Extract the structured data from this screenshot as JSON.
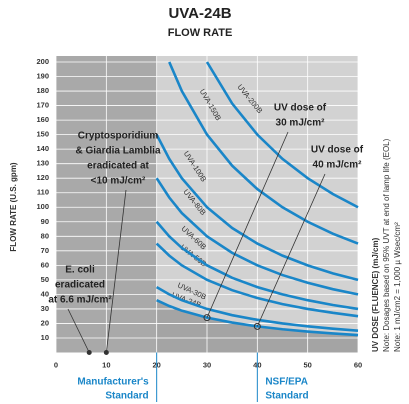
{
  "chart_data": {
    "type": "line",
    "title": "UVA-24B",
    "subtitle": "FLOW RATE",
    "y_label": "FLOW RATE (U.S. gpm)",
    "x_label": "UV DOSE (FLUENCE) (mJ/cm)",
    "notes": [
      "Note: Dosages based on 95% UVT at end of lamp life (EOL)",
      "Note: 1 mJ/cm2 = 1,000 µ Wsec/cm²"
    ],
    "xlim": [
      0,
      60
    ],
    "ylim": [
      0,
      200
    ],
    "xticks": [
      0,
      10,
      20,
      30,
      40,
      50,
      60
    ],
    "yticks": [
      10,
      20,
      30,
      40,
      50,
      60,
      70,
      80,
      90,
      100,
      110,
      120,
      130,
      140,
      150,
      160,
      170,
      180,
      190,
      200
    ],
    "grid": true,
    "x": [
      20,
      22.5,
      25,
      30,
      35,
      40,
      45,
      50,
      55,
      60
    ],
    "series": [
      {
        "name": "UVA-24B",
        "color": "#1a86c8",
        "values": [
          36,
          32,
          28.8,
          24,
          20.6,
          18,
          16,
          14.4,
          13.1,
          12
        ]
      },
      {
        "name": "UVA-30B",
        "color": "#1a86c8",
        "values": [
          45,
          40,
          36,
          30,
          25.7,
          22.5,
          20,
          18,
          16.4,
          15
        ]
      },
      {
        "name": "UVA-50B",
        "color": "#1a86c8",
        "values": [
          75,
          66.7,
          60,
          50,
          42.9,
          37.5,
          33.3,
          30,
          27.3,
          25
        ]
      },
      {
        "name": "UVA-60B",
        "color": "#1a86c8",
        "values": [
          90,
          80,
          72,
          60,
          51.4,
          45,
          40,
          36,
          32.7,
          30
        ]
      },
      {
        "name": "UVA-80B",
        "color": "#1a86c8",
        "values": [
          120,
          106.7,
          96,
          80,
          68.6,
          60,
          53.3,
          48,
          43.6,
          40
        ]
      },
      {
        "name": "UVA-100B",
        "color": "#1a86c8",
        "values": [
          150,
          133.3,
          120,
          100,
          85.7,
          75,
          66.7,
          60,
          54.5,
          50
        ]
      },
      {
        "name": "UVA-150B",
        "color": "#1a86c8",
        "values": [
          null,
          200,
          180,
          150,
          128.6,
          112.5,
          100,
          90,
          81.8,
          75
        ]
      },
      {
        "name": "UVA-200B",
        "color": "#1a86c8",
        "values": [
          null,
          null,
          null,
          200,
          171.4,
          150,
          133.3,
          120,
          109.1,
          100
        ]
      }
    ],
    "annotations": [
      {
        "text": [
          "UV dose of",
          "30 mJ/cm²"
        ],
        "x": 30,
        "y": 24
      },
      {
        "text": [
          "UV dose of",
          "40 mJ/cm²"
        ],
        "x": 40,
        "y": 18
      },
      {
        "text": [
          "Cryptosporidium",
          "& Giardia Lamblia",
          "eradicated at",
          "<10 mJ/cm²"
        ],
        "x": 10,
        "y": 0
      },
      {
        "text": [
          "E. coli",
          "eradicated",
          "at 6.6 mJ/cm²"
        ],
        "x": 6.6,
        "y": 0
      }
    ],
    "standards": [
      {
        "text": [
          "Manufacturer's",
          "Standard"
        ],
        "x": 20
      },
      {
        "text": [
          "NSF/EPA",
          "Standard"
        ],
        "x": 40
      }
    ]
  }
}
